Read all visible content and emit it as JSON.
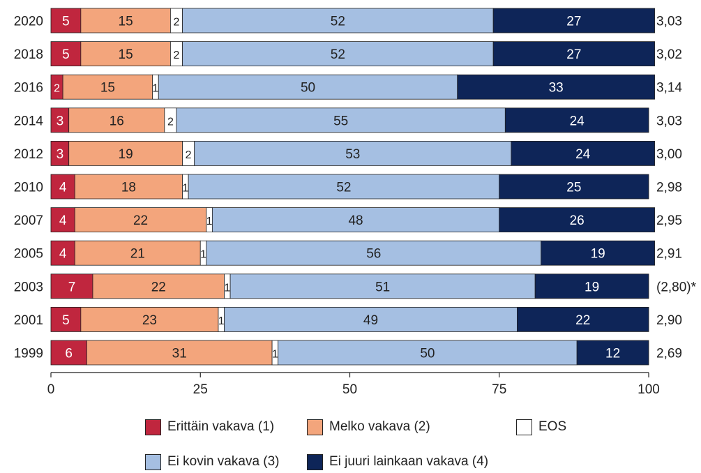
{
  "chart_data": {
    "type": "bar",
    "orientation": "horizontal",
    "stacked": true,
    "categories": [
      "2020",
      "2018",
      "2016",
      "2014",
      "2012",
      "2010",
      "2007",
      "2005",
      "2003",
      "2001",
      "1999"
    ],
    "series": [
      {
        "name": "Erittäin vakava (1)",
        "color": "#c0263e",
        "values": [
          5,
          5,
          2,
          3,
          3,
          4,
          4,
          4,
          7,
          5,
          6
        ]
      },
      {
        "name": "Melko vakava (2)",
        "color": "#f3a57c",
        "values": [
          15,
          15,
          15,
          16,
          19,
          18,
          22,
          21,
          22,
          23,
          31
        ]
      },
      {
        "name": "EOS",
        "color": "#ffffff",
        "values": [
          2,
          2,
          1,
          2,
          2,
          1,
          1,
          1,
          1,
          1,
          1
        ]
      },
      {
        "name": "Ei kovin vakava (3)",
        "color": "#a5bfe2",
        "values": [
          52,
          52,
          50,
          55,
          53,
          52,
          48,
          56,
          51,
          49,
          50
        ]
      },
      {
        "name": "Ei juuri lainkaan vakava (4)",
        "color": "#0e2558",
        "values": [
          27,
          27,
          33,
          24,
          24,
          25,
          26,
          19,
          19,
          22,
          12
        ]
      }
    ],
    "label_colors": [
      "#ffffff",
      "#222222",
      "#222222",
      "#222222",
      "#ffffff"
    ],
    "right_labels": [
      "3,03",
      "3,02",
      "3,14",
      "3,03",
      "3,00",
      "2,98",
      "2,95",
      "2,91",
      "(2,80)*",
      "2,90",
      "2,69"
    ],
    "xticks": [
      "0",
      "25",
      "50",
      "75",
      "100"
    ],
    "xlim": [
      0,
      100
    ],
    "grid": false,
    "legend_position": "bottom"
  }
}
